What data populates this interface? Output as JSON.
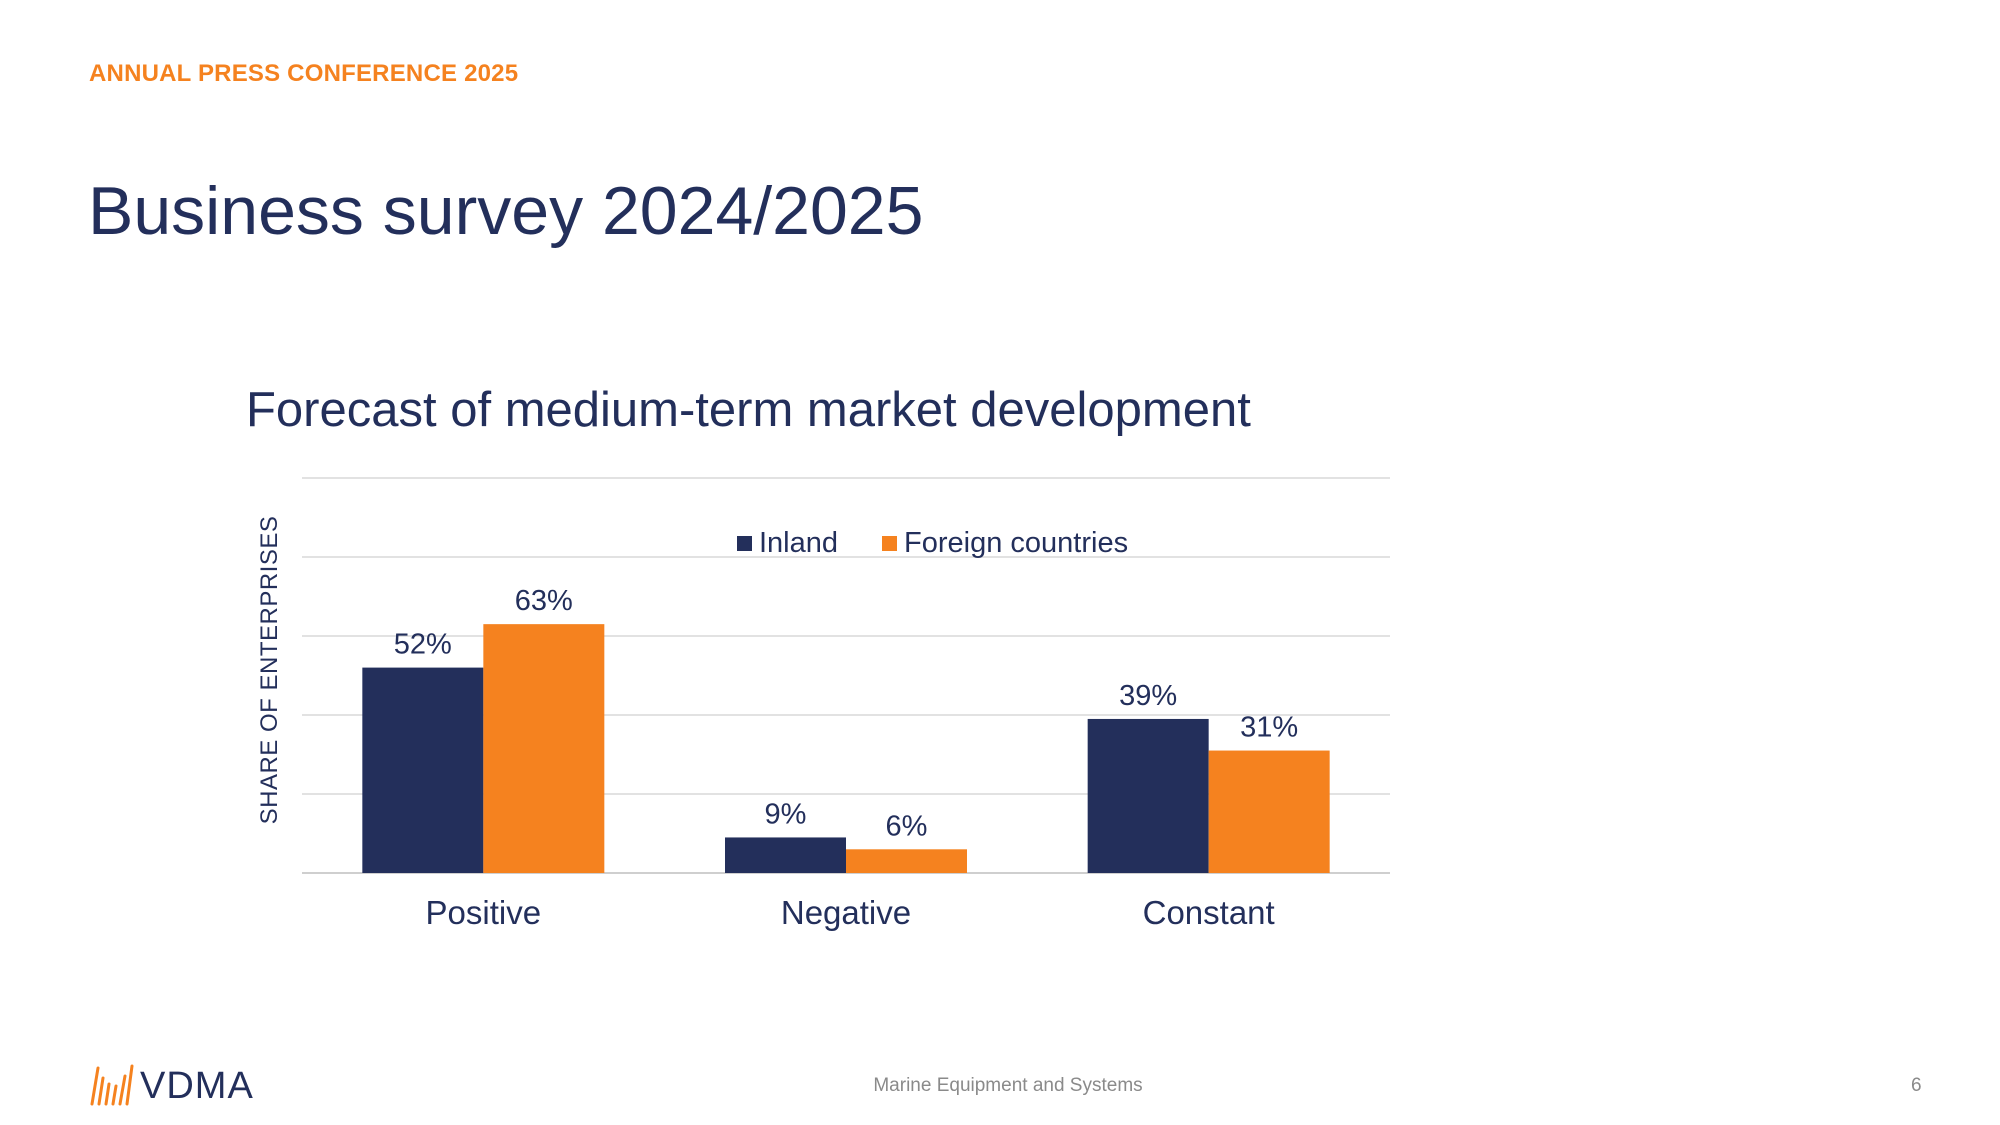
{
  "header": {
    "kicker": "ANNUAL PRESS CONFERENCE 2025",
    "title": "Business survey 2024/2025"
  },
  "footer": {
    "center_text": "Marine Equipment and Systems",
    "page_number": "6",
    "logo_text": "VDMA"
  },
  "colors": {
    "navy": "#232F5B",
    "orange": "#F5821F",
    "grid": "#D9D9D9"
  },
  "chart_data": {
    "type": "bar",
    "title": "Forecast of medium-term market development",
    "xlabel": "",
    "ylabel": "SHARE OF ENTERPRISES",
    "categories": [
      "Positive",
      "Negative",
      "Constant"
    ],
    "series": [
      {
        "name": "Inland",
        "values": [
          52,
          9,
          39
        ],
        "labels": [
          "52%",
          "9%",
          "39%"
        ],
        "color": "#232F5B"
      },
      {
        "name": "Foreign countries",
        "values": [
          63,
          6,
          31
        ],
        "labels": [
          "63%",
          "6%",
          "31%"
        ],
        "color": "#F5821F"
      }
    ],
    "ylim": [
      0,
      100
    ],
    "grid": true,
    "legend_position": "top-center"
  }
}
